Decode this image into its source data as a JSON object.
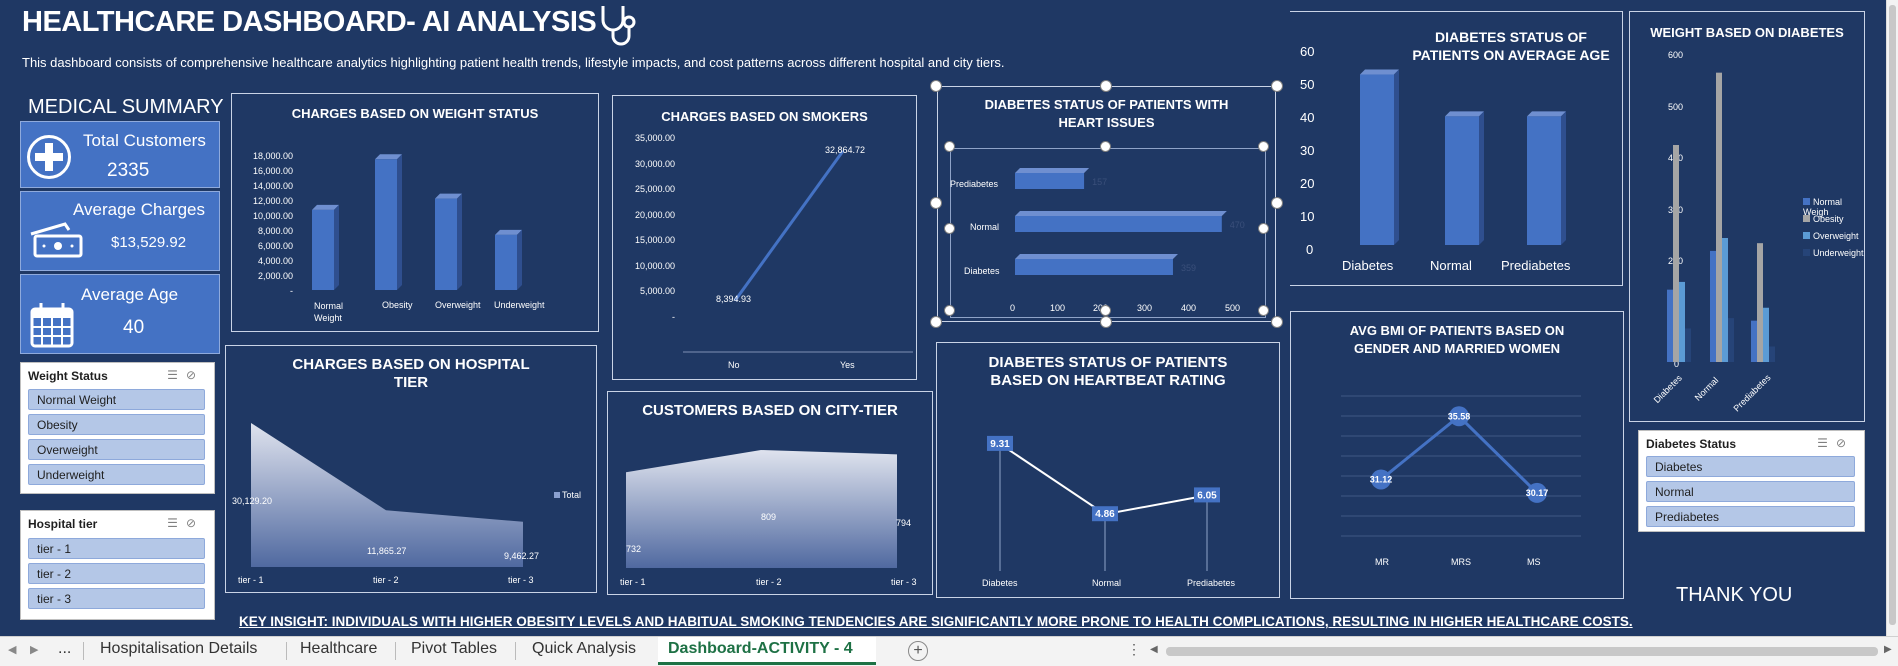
{
  "header": {
    "title": "HEALTHCARE DASHBOARD- AI ANALYSIS",
    "subtitle": "This dashboard consists of comprehensive healthcare analytics highlighting patient health trends, lifestyle impacts, and cost patterns across different hospital and city tiers."
  },
  "summary": {
    "heading": "MEDICAL SUMMARY",
    "cards": [
      {
        "label": "Total Customers",
        "value": "2335",
        "icon": "plus-circle-icon"
      },
      {
        "label": "Average Charges",
        "value": "$13,529.92",
        "icon": "money-icon"
      },
      {
        "label": "Average Age",
        "value": "40",
        "icon": "calendar-icon"
      }
    ]
  },
  "slicers": {
    "weight": {
      "title": "Weight Status",
      "items": [
        "Normal Weight",
        "Obesity",
        "Overweight",
        "Underweight"
      ]
    },
    "hospital": {
      "title": "Hospital tier",
      "items": [
        "tier - 1",
        "tier - 2",
        "tier - 3"
      ]
    },
    "diabetes": {
      "title": "Diabetes Status",
      "items": [
        "Diabetes",
        "Normal",
        "Prediabetes"
      ]
    }
  },
  "charts": {
    "weight": {
      "title": "CHARGES BASED ON WEIGHT STATUS",
      "yticks": [
        "18,000.00",
        "16,000.00",
        "14,000.00",
        "12,000.00",
        "10,000.00",
        "8,000.00",
        "6,000.00",
        "4,000.00",
        "2,000.00",
        "-"
      ],
      "xlabels": [
        "Normal Weight",
        "Obesity",
        "Overweight",
        "Underweight"
      ]
    },
    "smokers": {
      "title": "CHARGES BASED ON SMOKERS",
      "yticks": [
        "35,000.00",
        "30,000.00",
        "25,000.00",
        "20,000.00",
        "15,000.00",
        "10,000.00",
        "5,000.00",
        "-"
      ],
      "xlabels": [
        "No",
        "Yes"
      ],
      "labels": [
        "8,394.93",
        "32,864.72"
      ]
    },
    "heart": {
      "title": "DIABETES STATUS OF PATIENTS WITH HEART ISSUES",
      "categories": [
        "Prediabetes",
        "Normal",
        "Diabetes"
      ],
      "xticks": [
        "0",
        "100",
        "200",
        "300",
        "400",
        "500"
      ],
      "labels": [
        "157",
        "470",
        "359"
      ]
    },
    "age": {
      "title": "DIABETES STATUS OF PATIENTS ON AVERAGE AGE",
      "yticks": [
        "60",
        "50",
        "40",
        "30",
        "20",
        "10",
        "0"
      ],
      "xlabels": [
        "Diabetes",
        "Normal",
        "Prediabetes"
      ]
    },
    "weight_diab": {
      "title": "WEIGHT BASED ON DIABETES",
      "yticks": [
        "600",
        "500",
        "400",
        "300",
        "200",
        "100",
        "0"
      ],
      "xlabels": [
        "Diabetes",
        "Normal",
        "Prediabetes"
      ],
      "legend": [
        "Normal Weigh",
        "Obesity",
        "Overweight",
        "Underweight"
      ]
    },
    "hospital": {
      "title": "CHARGES BASED ON HOSPITAL TIER",
      "xlabels": [
        "tier - 1",
        "tier - 2",
        "tier - 3"
      ],
      "labels": [
        "30,129.20",
        "11,865.27",
        "9,462.27"
      ],
      "legend": "Total"
    },
    "city": {
      "title": "CUSTOMERS BASED ON CITY-TIER",
      "xlabels": [
        "tier - 1",
        "tier - 2",
        "tier - 3"
      ],
      "labels": [
        "732",
        "809",
        "794"
      ]
    },
    "heartbeat": {
      "title": "DIABETES STATUS OF PATIENTS BASED ON HEARTBEAT RATING",
      "xlabels": [
        "Diabetes",
        "Normal",
        "Prediabetes"
      ],
      "labels": [
        "9.31",
        "4.86",
        "6.05"
      ]
    },
    "bmi": {
      "title": "AVG BMI OF PATIENTS BASED ON GENDER AND MARRIED WOMEN",
      "xlabels": [
        "MR",
        "MRS",
        "MS"
      ],
      "labels": [
        "31.12",
        "35.58",
        "30.17"
      ]
    }
  },
  "chart_data": [
    {
      "type": "bar",
      "title": "CHARGES BASED ON WEIGHT STATUS",
      "categories": [
        "Normal Weight",
        "Obesity",
        "Overweight",
        "Underweight"
      ],
      "values": [
        10600,
        17300,
        12100,
        7300
      ],
      "ylim": [
        0,
        18000
      ]
    },
    {
      "type": "line",
      "title": "CHARGES BASED ON SMOKERS",
      "categories": [
        "No",
        "Yes"
      ],
      "values": [
        8394.93,
        32864.72
      ],
      "ylim": [
        0,
        35000
      ]
    },
    {
      "type": "bar",
      "title": "DIABETES STATUS OF PATIENTS WITH HEART ISSUES",
      "categories": [
        "Prediabetes",
        "Normal",
        "Diabetes"
      ],
      "values": [
        157,
        470,
        359
      ],
      "xlim": [
        0,
        500
      ]
    },
    {
      "type": "bar",
      "title": "DIABETES STATUS OF PATIENTS ON AVERAGE AGE",
      "categories": [
        "Diabetes",
        "Normal",
        "Prediabetes"
      ],
      "values": [
        53,
        40,
        40
      ],
      "ylim": [
        0,
        60
      ]
    },
    {
      "type": "bar",
      "title": "WEIGHT BASED ON DIABETES",
      "categories": [
        "Diabetes",
        "Normal",
        "Prediabetes"
      ],
      "series": [
        {
          "name": "Normal Weigh",
          "values": [
            140,
            215,
            80
          ]
        },
        {
          "name": "Obesity",
          "values": [
            420,
            560,
            230
          ]
        },
        {
          "name": "Overweight",
          "values": [
            155,
            240,
            105
          ]
        },
        {
          "name": "Underweight",
          "values": [
            65,
            85,
            30
          ]
        }
      ],
      "ylim": [
        0,
        600
      ]
    },
    {
      "type": "area",
      "title": "CHARGES BASED ON HOSPITAL TIER",
      "categories": [
        "tier - 1",
        "tier - 2",
        "tier - 3"
      ],
      "values": [
        30129.2,
        11865.27,
        9462.27
      ],
      "series_name": "Total"
    },
    {
      "type": "area",
      "title": "CUSTOMERS BASED ON CITY-TIER",
      "categories": [
        "tier - 1",
        "tier - 2",
        "tier - 3"
      ],
      "values": [
        732,
        809,
        794
      ]
    },
    {
      "type": "line",
      "title": "DIABETES STATUS OF PATIENTS BASED ON HEARTBEAT RATING",
      "categories": [
        "Diabetes",
        "Normal",
        "Prediabetes"
      ],
      "values": [
        9.31,
        4.86,
        6.05
      ]
    },
    {
      "type": "line",
      "title": "AVG BMI OF PATIENTS BASED ON GENDER AND MARRIED WOMEN",
      "categories": [
        "MR",
        "MRS",
        "MS"
      ],
      "values": [
        31.12,
        35.58,
        30.17
      ]
    }
  ],
  "insight": "KEY INSIGHT: INDIVIDUALS WITH HIGHER OBESITY LEVELS AND HABITUAL SMOKING TENDENCIES ARE SIGNIFICANTLY MORE PRONE TO HEALTH COMPLICATIONS, RESULTING IN HIGHER HEALTHCARE COSTS.",
  "thanks": "THANK YOU",
  "tabs": {
    "ellipsis": "...",
    "items": [
      "Hospitalisation Details",
      "Healthcare",
      "Pivot Tables",
      "Quick Analysis",
      "Dashboard-ACTIVITY - 4"
    ],
    "active": "Dashboard-ACTIVITY - 4"
  },
  "colors": {
    "background": "#1f3864",
    "bar": "#4472c4",
    "card": "#4472c4",
    "slicer_item": "#b4c7e7",
    "obesity": "#a5a5a5",
    "overweight": "#5b9bd5",
    "underweight": "#264478"
  }
}
